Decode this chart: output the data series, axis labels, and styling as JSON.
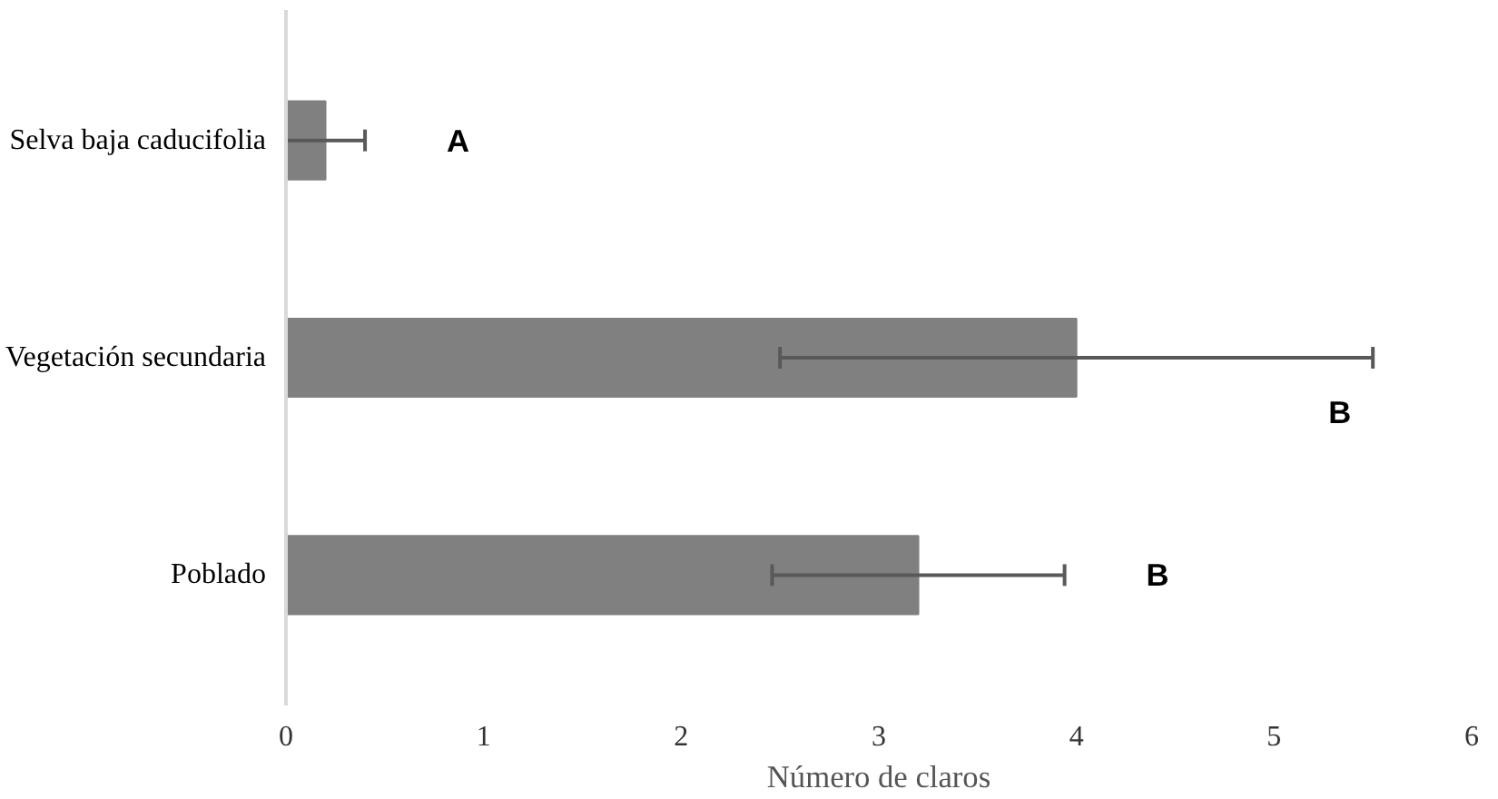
{
  "chart_data": {
    "type": "bar",
    "orientation": "horizontal",
    "xlabel": "Número de claros",
    "categories": [
      "Selva baja caducifolia",
      "Vegetación secundaria",
      "Poblado"
    ],
    "values": [
      0.2,
      4.0,
      3.2
    ],
    "errors": [
      0.2,
      1.5,
      0.74
    ],
    "color": "#808080",
    "xlim": [
      0,
      6
    ],
    "xticks": [
      0,
      1,
      2,
      3,
      4,
      5,
      6
    ],
    "grid": false,
    "annotations": [
      "A",
      "B",
      "B"
    ]
  }
}
